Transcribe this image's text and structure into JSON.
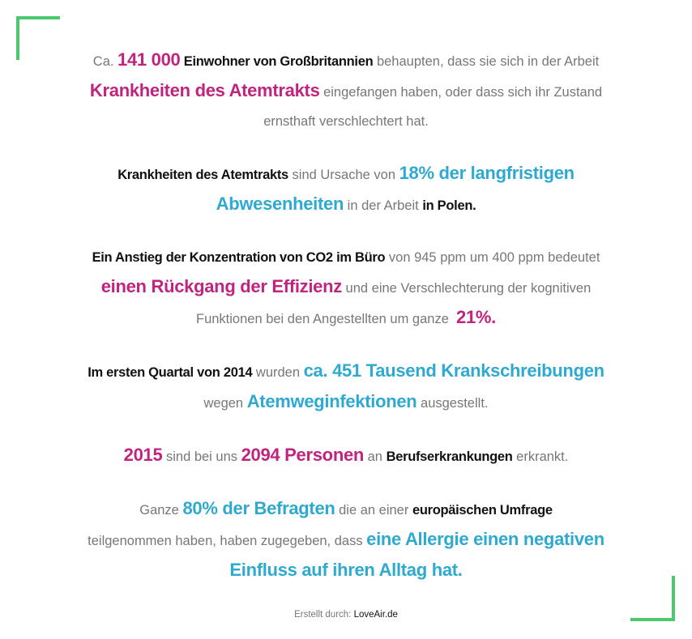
{
  "colors": {
    "accent_magenta": "#C0247F",
    "accent_blue": "#2EA9CF",
    "frame_green": "#4CC86E",
    "text_grey": "#777777",
    "text_dark": "#111111"
  },
  "facts": [
    {
      "lines": [
        [
          {
            "t": "Ca. ",
            "s": "g"
          },
          {
            "t": "141 000",
            "s": "m"
          },
          {
            "t": " Einwohner von Großbritannien",
            "s": "k"
          },
          {
            "t": " behaupten, dass sie sich in der Arbeit",
            "s": "g"
          }
        ],
        [
          {
            "t": "Krankheiten des Atemtrakts",
            "s": "m"
          },
          {
            "t": " eingefangen haben, oder dass sich ihr Zustand",
            "s": "g"
          }
        ],
        [
          {
            "t": "ernsthaft verschlechtert hat.",
            "s": "g"
          }
        ]
      ]
    },
    {
      "lines": [
        [
          {
            "t": "Krankheiten des Atemtrakts",
            "s": "k"
          },
          {
            "t": " sind Ursache von ",
            "s": "g"
          },
          {
            "t": "18% der langfristigen",
            "s": "b"
          }
        ],
        [
          {
            "t": "Abwesenheiten",
            "s": "b"
          },
          {
            "t": " in der Arbeit ",
            "s": "g"
          },
          {
            "t": "in Polen.",
            "s": "k"
          }
        ]
      ]
    },
    {
      "lines": [
        [
          {
            "t": "Ein Anstieg der Konzentration von CO2 im Büro",
            "s": "k"
          },
          {
            "t": " von 945 ppm um 400 ppm bedeutet",
            "s": "g"
          }
        ],
        [
          {
            "t": "einen Rückgang der Effizienz",
            "s": "m"
          },
          {
            "t": " und eine Verschlechterung der kognitiven",
            "s": "g"
          }
        ],
        [
          {
            "t": "Funktionen bei den Angestellten um ganze  ",
            "s": "g"
          },
          {
            "t": "21%.",
            "s": "m"
          }
        ]
      ]
    },
    {
      "lines": [
        [
          {
            "t": "Im ersten Quartal von 2014",
            "s": "k"
          },
          {
            "t": " wurden ",
            "s": "g"
          },
          {
            "t": "ca. 451 Tausend Krankschreibungen",
            "s": "b"
          }
        ],
        [
          {
            "t": "wegen ",
            "s": "g"
          },
          {
            "t": "Atemweginfektionen",
            "s": "b"
          },
          {
            "t": " ausgestellt.",
            "s": "g"
          }
        ]
      ]
    },
    {
      "lines": [
        [
          {
            "t": "2015",
            "s": "m"
          },
          {
            "t": " sind bei uns ",
            "s": "g"
          },
          {
            "t": "2094 Personen",
            "s": "m"
          },
          {
            "t": " an ",
            "s": "g"
          },
          {
            "t": "Berufserkrankungen",
            "s": "k"
          },
          {
            "t": " erkrankt.",
            "s": "g"
          }
        ]
      ]
    },
    {
      "lines": [
        [
          {
            "t": "Ganze ",
            "s": "g"
          },
          {
            "t": "80% der Befragten",
            "s": "b"
          },
          {
            "t": " die an einer ",
            "s": "g"
          },
          {
            "t": "europäischen Umfrage",
            "s": "k"
          }
        ],
        [
          {
            "t": "teilgenommen haben, haben zugegeben, dass ",
            "s": "g"
          },
          {
            "t": "eine Allergie einen negativen",
            "s": "b"
          }
        ],
        [
          {
            "t": "Einfluss auf ihren Alltag hat.",
            "s": "b"
          }
        ]
      ]
    }
  ],
  "footer": {
    "label": "Erstellt durch: ",
    "source": "LoveAir.de"
  }
}
